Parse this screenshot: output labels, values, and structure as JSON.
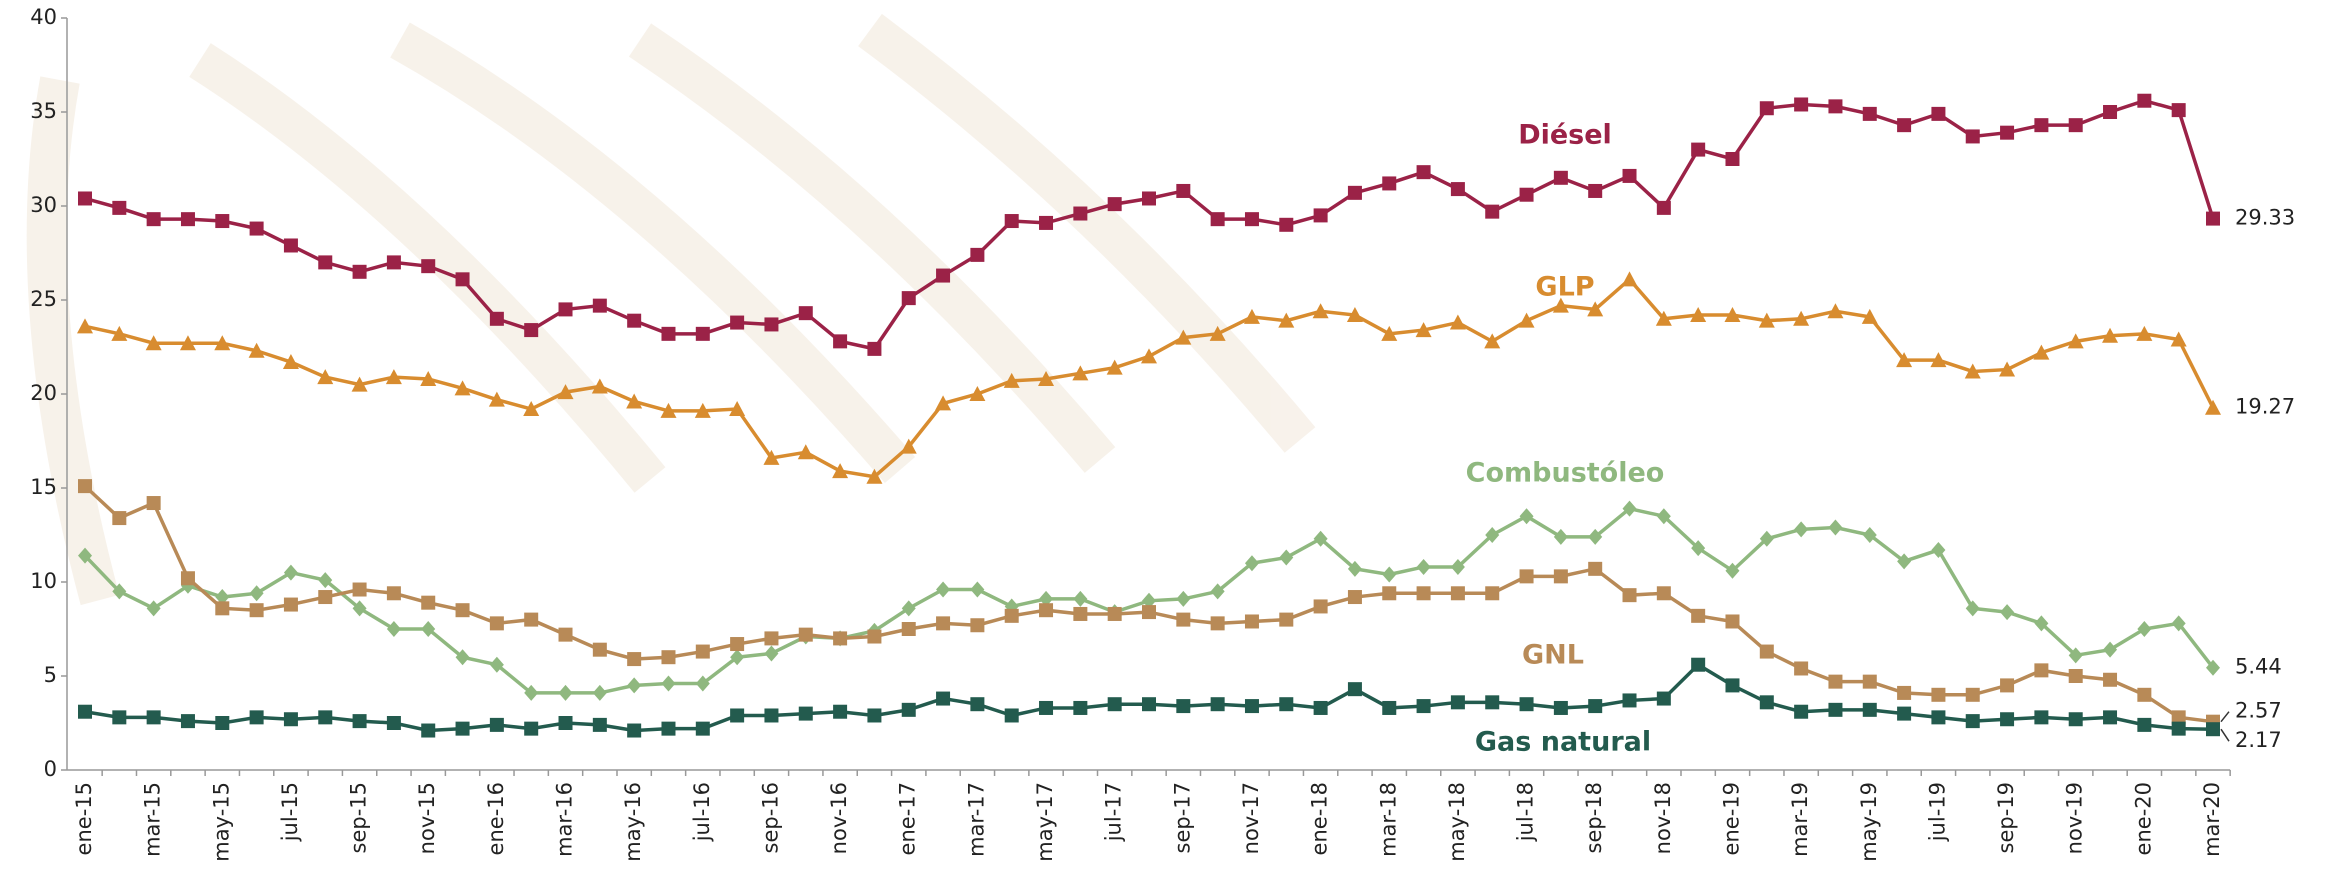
{
  "chart_data": {
    "type": "line",
    "categories": [
      "ene-15",
      null,
      "mar-15",
      null,
      "may-15",
      null,
      "jul-15",
      null,
      "sep-15",
      null,
      "nov-15",
      null,
      "ene-16",
      null,
      "mar-16",
      null,
      "may-16",
      null,
      "jul-16",
      null,
      "sep-16",
      null,
      "nov-16",
      null,
      "ene-17",
      null,
      "mar-17",
      null,
      "may-17",
      null,
      "jul-17",
      null,
      "sep-17",
      null,
      "nov-17",
      null,
      "ene-18",
      null,
      "mar-18",
      null,
      "may-18",
      null,
      "jul-18",
      null,
      "sep-18",
      null,
      "nov-18",
      null,
      "ene-19",
      null,
      "mar-19",
      null,
      "may-19",
      null,
      "jul-19",
      null,
      "sep-19",
      null,
      "nov-19",
      null,
      "ene-20",
      null,
      "mar-20"
    ],
    "ylim": [
      0,
      40
    ],
    "yticks": [
      0,
      5,
      10,
      15,
      20,
      25,
      30,
      35,
      40
    ],
    "grid": false,
    "series": [
      {
        "name": "Diésel",
        "color": "#9b2247",
        "marker": "square",
        "values": [
          30.4,
          29.9,
          29.3,
          29.3,
          29.2,
          28.8,
          27.9,
          27.0,
          26.5,
          27.0,
          26.8,
          26.1,
          24.0,
          23.4,
          24.5,
          24.7,
          23.9,
          23.2,
          23.2,
          23.8,
          23.7,
          24.3,
          22.8,
          22.4,
          25.1,
          26.3,
          27.4,
          29.2,
          29.1,
          29.6,
          30.1,
          30.4,
          30.8,
          29.3,
          29.3,
          29.0,
          29.5,
          30.7,
          31.2,
          31.8,
          30.9,
          29.7,
          30.6,
          31.5,
          30.8,
          31.6,
          29.9,
          33.0,
          32.5,
          35.2,
          35.4,
          35.3,
          34.9,
          34.3,
          34.9,
          33.7,
          33.9,
          34.3,
          34.3,
          35.0,
          35.6,
          35.1,
          29.33
        ]
      },
      {
        "name": "GLP",
        "color": "#d88c2f",
        "marker": "triangle",
        "values": [
          23.6,
          23.2,
          22.7,
          22.7,
          22.7,
          22.3,
          21.7,
          20.9,
          20.5,
          20.9,
          20.8,
          20.3,
          19.7,
          19.2,
          20.1,
          20.4,
          19.6,
          19.1,
          19.1,
          19.2,
          16.6,
          16.9,
          15.9,
          15.6,
          17.2,
          19.5,
          20.0,
          20.7,
          20.8,
          21.1,
          21.4,
          22.0,
          23.0,
          23.2,
          24.1,
          23.9,
          24.4,
          24.2,
          23.2,
          23.4,
          23.8,
          22.8,
          23.9,
          24.7,
          24.5,
          26.1,
          24.0,
          24.2,
          24.2,
          23.9,
          24.0,
          24.4,
          24.1,
          21.8,
          21.8,
          21.2,
          21.3,
          22.2,
          22.8,
          23.1,
          23.2,
          22.9,
          19.27
        ]
      },
      {
        "name": "Combustóleo",
        "color": "#8fb87f",
        "marker": "diamond",
        "values": [
          11.4,
          9.5,
          8.6,
          9.8,
          9.2,
          9.4,
          10.5,
          10.1,
          8.6,
          7.5,
          7.5,
          6.0,
          5.6,
          4.1,
          4.1,
          4.1,
          4.5,
          4.6,
          4.6,
          6.0,
          6.2,
          7.1,
          7.0,
          7.4,
          8.6,
          9.6,
          9.6,
          8.7,
          9.1,
          9.1,
          8.4,
          9.0,
          9.1,
          9.5,
          11.0,
          11.3,
          12.3,
          10.7,
          10.4,
          10.8,
          10.8,
          12.5,
          13.5,
          12.4,
          12.4,
          13.9,
          13.5,
          11.8,
          10.6,
          12.3,
          12.8,
          12.9,
          12.5,
          11.1,
          11.7,
          8.6,
          8.4,
          7.8,
          6.1,
          6.4,
          7.5,
          7.8,
          5.44
        ]
      },
      {
        "name": "GNL",
        "color": "#b88a57",
        "marker": "square",
        "values": [
          15.1,
          13.4,
          14.2,
          10.2,
          8.6,
          8.5,
          8.8,
          9.2,
          9.6,
          9.4,
          8.9,
          8.5,
          7.8,
          8.0,
          7.2,
          6.4,
          5.9,
          6.0,
          6.3,
          6.7,
          7.0,
          7.2,
          7.0,
          7.1,
          7.5,
          7.8,
          7.7,
          8.2,
          8.5,
          8.3,
          8.3,
          8.4,
          8.0,
          7.8,
          7.9,
          8.0,
          8.7,
          9.2,
          9.4,
          9.4,
          9.4,
          9.4,
          10.3,
          10.3,
          10.7,
          9.3,
          9.4,
          8.2,
          7.9,
          6.3,
          5.4,
          4.7,
          4.7,
          4.1,
          4.0,
          4.0,
          4.5,
          5.3,
          5.0,
          4.8,
          4.0,
          2.8,
          2.57
        ]
      },
      {
        "name": "Gas natural",
        "color": "#235b4e",
        "marker": "square",
        "values": [
          3.1,
          2.8,
          2.8,
          2.6,
          2.5,
          2.8,
          2.7,
          2.8,
          2.6,
          2.5,
          2.1,
          2.2,
          2.4,
          2.2,
          2.5,
          2.4,
          2.1,
          2.2,
          2.2,
          2.9,
          2.9,
          3.0,
          3.1,
          2.9,
          3.2,
          3.8,
          3.5,
          2.9,
          3.3,
          3.3,
          3.5,
          3.5,
          3.4,
          3.5,
          3.4,
          3.5,
          3.3,
          4.3,
          3.3,
          3.4,
          3.6,
          3.6,
          3.5,
          3.3,
          3.4,
          3.7,
          3.8,
          5.6,
          4.5,
          3.6,
          3.1,
          3.2,
          3.2,
          3.0,
          2.8,
          2.6,
          2.7,
          2.8,
          2.7,
          2.8,
          2.4,
          2.2,
          2.17
        ]
      }
    ]
  }
}
